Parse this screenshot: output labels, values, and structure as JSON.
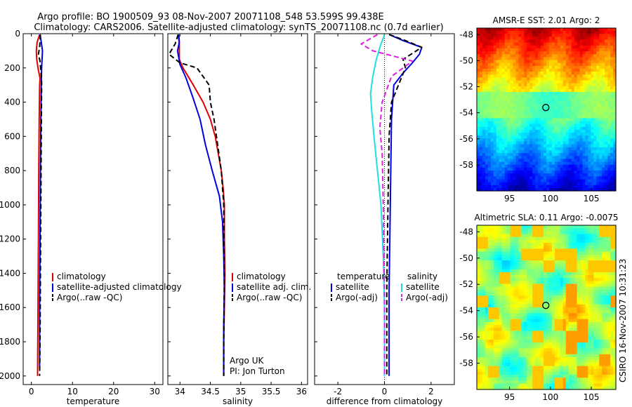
{
  "header": {
    "line1": "Argo profile: BO 1900509_93 08-Nov-2007 20071108_548 53.599S 99.438E",
    "line2": "Climatology: CARS2006. Satellite-adjusted climatology: synTS_20071108.nc (0.7d earlier)"
  },
  "credit": "CSIRO 16-Nov-2007 10:31:23",
  "argo_info": [
    "Argo UK",
    "PI: Jon Turton"
  ],
  "colors": {
    "climatology": "#e00000",
    "satellite": "#0000e0",
    "argo": "#000000",
    "salinity_satellite": "#20e0e0",
    "salinity_argo_adj": "#e020e0"
  },
  "chart_data": [
    {
      "type": "line",
      "xlabel": "temperature",
      "ylabel": "",
      "xlim": [
        -2,
        32
      ],
      "ylim": [
        2050,
        0
      ],
      "xticks": [
        "0",
        "10",
        "20",
        "30"
      ],
      "yticks": [
        "0",
        "200",
        "400",
        "600",
        "800",
        "1000",
        "1200",
        "1400",
        "1600",
        "1800",
        "2000"
      ],
      "legend": [
        "climatology",
        "satellite-adjusted climatology",
        "Argo(..raw -QC)"
      ],
      "legend_loc": "lower-middle",
      "series": [
        {
          "name": "climatology",
          "style": "solid",
          "color": "#e00000",
          "points": [
            [
              2.0,
              5
            ],
            [
              1.4,
              50
            ],
            [
              1.2,
              100
            ],
            [
              1.3,
              150
            ],
            [
              1.6,
              200
            ],
            [
              2.1,
              260
            ],
            [
              2.0,
              300
            ],
            [
              1.9,
              500
            ],
            [
              1.8,
              800
            ],
            [
              1.7,
              1200
            ],
            [
              1.6,
              1600
            ],
            [
              1.5,
              2000
            ]
          ]
        },
        {
          "name": "satellite-adjusted climatology",
          "style": "solid",
          "color": "#0000e0",
          "points": [
            [
              2.1,
              5
            ],
            [
              2.4,
              50
            ],
            [
              2.7,
              100
            ],
            [
              2.6,
              150
            ],
            [
              2.5,
              200
            ],
            [
              2.4,
              300
            ],
            [
              2.3,
              500
            ],
            [
              2.2,
              800
            ],
            [
              2.1,
              1200
            ],
            [
              2.0,
              1600
            ],
            [
              2.0,
              1950
            ]
          ]
        },
        {
          "name": "Argo(..raw -QC)",
          "style": "dashed",
          "color": "#000000",
          "points": [
            [
              2.2,
              5
            ],
            [
              2.0,
              80
            ],
            [
              1.7,
              120
            ],
            [
              2.1,
              160
            ],
            [
              2.3,
              220
            ],
            [
              2.5,
              280
            ],
            [
              2.5,
              300
            ],
            [
              2.4,
              600
            ],
            [
              2.3,
              1000
            ],
            [
              2.2,
              1400
            ],
            [
              2.1,
              1800
            ],
            [
              2.0,
              2000
            ]
          ]
        }
      ]
    },
    {
      "type": "line",
      "xlabel": "salinity",
      "ylabel": "",
      "xlim": [
        33.8,
        36.1
      ],
      "ylim": [
        2050,
        0
      ],
      "xticks": [
        "34",
        "34.5",
        "35",
        "35.5",
        "36"
      ],
      "legend": [
        "climatology",
        "satellite adj. clim.",
        "Argo(..raw -QC)"
      ],
      "legend_loc": "lower-right",
      "series": [
        {
          "name": "climatology",
          "style": "solid",
          "color": "#e00000",
          "points": [
            [
              33.97,
              5
            ],
            [
              33.99,
              60
            ],
            [
              33.99,
              150
            ],
            [
              34.05,
              200
            ],
            [
              34.22,
              300
            ],
            [
              34.38,
              400
            ],
            [
              34.5,
              500
            ],
            [
              34.58,
              600
            ],
            [
              34.63,
              700
            ],
            [
              34.68,
              800
            ],
            [
              34.71,
              900
            ],
            [
              34.73,
              1000
            ],
            [
              34.73,
              1200
            ],
            [
              34.74,
              1400
            ],
            [
              34.73,
              1600
            ],
            [
              34.72,
              1800
            ],
            [
              34.72,
              2000
            ]
          ]
        },
        {
          "name": "satellite adj. clim.",
          "style": "solid",
          "color": "#0000e0",
          "points": [
            [
              33.98,
              5
            ],
            [
              33.99,
              50
            ],
            [
              33.96,
              100
            ],
            [
              34.0,
              180
            ],
            [
              34.1,
              260
            ],
            [
              34.22,
              380
            ],
            [
              34.33,
              500
            ],
            [
              34.42,
              650
            ],
            [
              34.53,
              800
            ],
            [
              34.65,
              950
            ],
            [
              34.7,
              1100
            ],
            [
              34.72,
              1300
            ],
            [
              34.73,
              1500
            ],
            [
              34.72,
              1700
            ],
            [
              34.72,
              2000
            ]
          ]
        },
        {
          "name": "Argo(..raw -QC)",
          "style": "dashed",
          "color": "#000000",
          "points": [
            [
              33.97,
              5
            ],
            [
              33.92,
              60
            ],
            [
              33.82,
              120
            ],
            [
              34.0,
              170
            ],
            [
              34.28,
              200
            ],
            [
              34.48,
              300
            ],
            [
              34.5,
              400
            ],
            [
              34.56,
              500
            ],
            [
              34.6,
              600
            ],
            [
              34.64,
              700
            ],
            [
              34.68,
              800
            ],
            [
              34.72,
              1000
            ],
            [
              34.73,
              1400
            ],
            [
              34.72,
              1800
            ],
            [
              34.72,
              2000
            ]
          ]
        }
      ]
    },
    {
      "type": "line",
      "xlabel": "difference from climatology",
      "ylabel": "",
      "xlim": [
        -3,
        3
      ],
      "ylim": [
        2050,
        0
      ],
      "xticks": [
        "-2",
        "0",
        "2"
      ],
      "legend_groups": [
        {
          "title": "temperature",
          "items": [
            "satellite",
            "Argo(-adj)"
          ]
        },
        {
          "title": "salinity",
          "items": [
            "satellite",
            "Argo(-adj)"
          ]
        }
      ],
      "legend_loc": "lower",
      "series": [
        {
          "name": "temperature satellite",
          "style": "solid",
          "color": "#0000e0",
          "points": [
            [
              0.2,
              5
            ],
            [
              0.8,
              40
            ],
            [
              1.6,
              80
            ],
            [
              1.5,
              120
            ],
            [
              1.2,
              170
            ],
            [
              0.8,
              230
            ],
            [
              0.4,
              300
            ],
            [
              0.3,
              500
            ],
            [
              0.25,
              1000
            ],
            [
              0.2,
              1500
            ],
            [
              0.2,
              2000
            ]
          ]
        },
        {
          "name": "temperature Argo(-adj)",
          "style": "dashed",
          "color": "#000000",
          "points": [
            [
              0.2,
              5
            ],
            [
              0.9,
              40
            ],
            [
              1.6,
              80
            ],
            [
              0.8,
              150
            ],
            [
              0.9,
              200
            ],
            [
              0.6,
              300
            ],
            [
              0.3,
              400
            ],
            [
              0.2,
              600
            ],
            [
              0.15,
              1000
            ],
            [
              0.1,
              1500
            ],
            [
              0.1,
              2000
            ]
          ]
        },
        {
          "name": "salinity satellite",
          "style": "solid",
          "color": "#20e0e0",
          "points": [
            [
              0.0,
              5
            ],
            [
              -0.2,
              80
            ],
            [
              -0.35,
              150
            ],
            [
              -0.5,
              250
            ],
            [
              -0.6,
              350
            ],
            [
              -0.55,
              450
            ],
            [
              -0.45,
              600
            ],
            [
              -0.3,
              800
            ],
            [
              -0.15,
              1000
            ],
            [
              -0.05,
              1300
            ],
            [
              0.0,
              1600
            ],
            [
              0.0,
              2000
            ]
          ]
        },
        {
          "name": "salinity Argo(-adj)",
          "style": "dashed",
          "color": "#e020e0",
          "points": [
            [
              -0.3,
              5
            ],
            [
              -1.0,
              60
            ],
            [
              -0.5,
              100
            ],
            [
              1.2,
              160
            ],
            [
              0.3,
              250
            ],
            [
              -0.1,
              400
            ],
            [
              -0.2,
              550
            ],
            [
              -0.1,
              700
            ],
            [
              -0.05,
              1000
            ],
            [
              0.0,
              1500
            ],
            [
              0.0,
              2000
            ]
          ]
        }
      ]
    },
    {
      "type": "heatmap",
      "title": "AMSR-E SST: 2.01 Argo: 2",
      "xlim": [
        91,
        108
      ],
      "ylim": [
        -60,
        -47.5
      ],
      "xticks": [
        "95",
        "100",
        "105"
      ],
      "yticks": [
        "-48",
        "-50",
        "-52",
        "-54",
        "-56",
        "-58"
      ],
      "marker": {
        "lon": 99.438,
        "lat": -53.599
      },
      "field": {
        "kind": "sst"
      }
    },
    {
      "type": "heatmap",
      "title": "Altimetric SLA: 0.11 Argo: -0.0075",
      "xlim": [
        91,
        108
      ],
      "ylim": [
        -60,
        -47.5
      ],
      "xticks": [
        "95",
        "100",
        "105"
      ],
      "yticks": [
        "-48",
        "-50",
        "-52",
        "-54",
        "-56",
        "-58"
      ],
      "marker": {
        "lon": 99.438,
        "lat": -53.599
      },
      "field": {
        "kind": "sla"
      }
    }
  ]
}
